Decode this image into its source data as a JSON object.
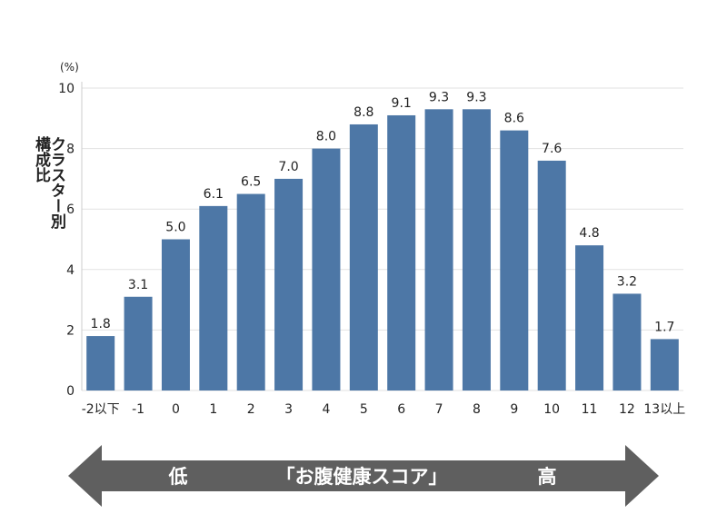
{
  "chart_data": {
    "type": "bar",
    "unit": "(%)",
    "ylabel_lines": [
      "クラスター別",
      "構成比"
    ],
    "ylim": [
      0,
      10
    ],
    "yticks": [
      0,
      2,
      4,
      6,
      8,
      10
    ],
    "grid": true,
    "categories": [
      "-2以下",
      "-1",
      "0",
      "1",
      "2",
      "3",
      "4",
      "5",
      "6",
      "7",
      "8",
      "9",
      "10",
      "11",
      "12",
      "13以上"
    ],
    "values": [
      1.8,
      3.1,
      5.0,
      6.1,
      6.5,
      7.0,
      8.0,
      8.8,
      9.1,
      9.3,
      9.3,
      8.6,
      7.6,
      4.8,
      3.2,
      1.7
    ],
    "value_labels": [
      "1.8",
      "3.1",
      "5.0",
      "6.1",
      "6.5",
      "7.0",
      "8.0",
      "8.8",
      "9.1",
      "9.3",
      "9.3",
      "8.6",
      "7.6",
      "4.8",
      "3.2",
      "1.7"
    ],
    "bar_color": "#4d77a6",
    "axis_arrow": {
      "low_label": "低",
      "center_label": "「お腹健康スコア」",
      "high_label": "高",
      "color": "#5f5f5f"
    }
  }
}
